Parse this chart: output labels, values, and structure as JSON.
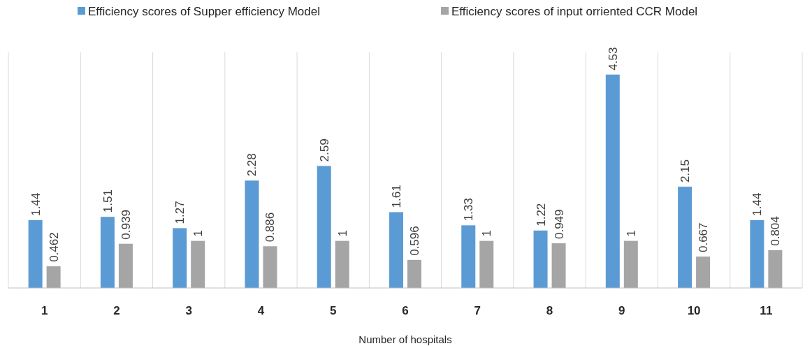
{
  "chart_data": {
    "type": "bar",
    "xlabel": "Number of hospitals",
    "categories": [
      "1",
      "2",
      "3",
      "4",
      "5",
      "6",
      "7",
      "8",
      "9",
      "10",
      "11"
    ],
    "series": [
      {
        "name": "Efficiency scores of Supper efficiency Model",
        "color": "#5b9bd5",
        "values": [
          1.44,
          1.51,
          1.27,
          2.28,
          2.59,
          1.61,
          1.33,
          1.22,
          4.53,
          2.15,
          1.44
        ]
      },
      {
        "name": "Efficiency scores of input orriented CCR Model",
        "color": "#a5a5a5",
        "values": [
          0.462,
          0.939,
          1,
          0.886,
          1,
          0.596,
          1,
          0.949,
          1,
          0.667,
          0.804
        ]
      }
    ],
    "ylim": [
      0,
      5
    ],
    "tick_labels": "x",
    "grid": "x",
    "legend": "top",
    "data_labels": true
  }
}
